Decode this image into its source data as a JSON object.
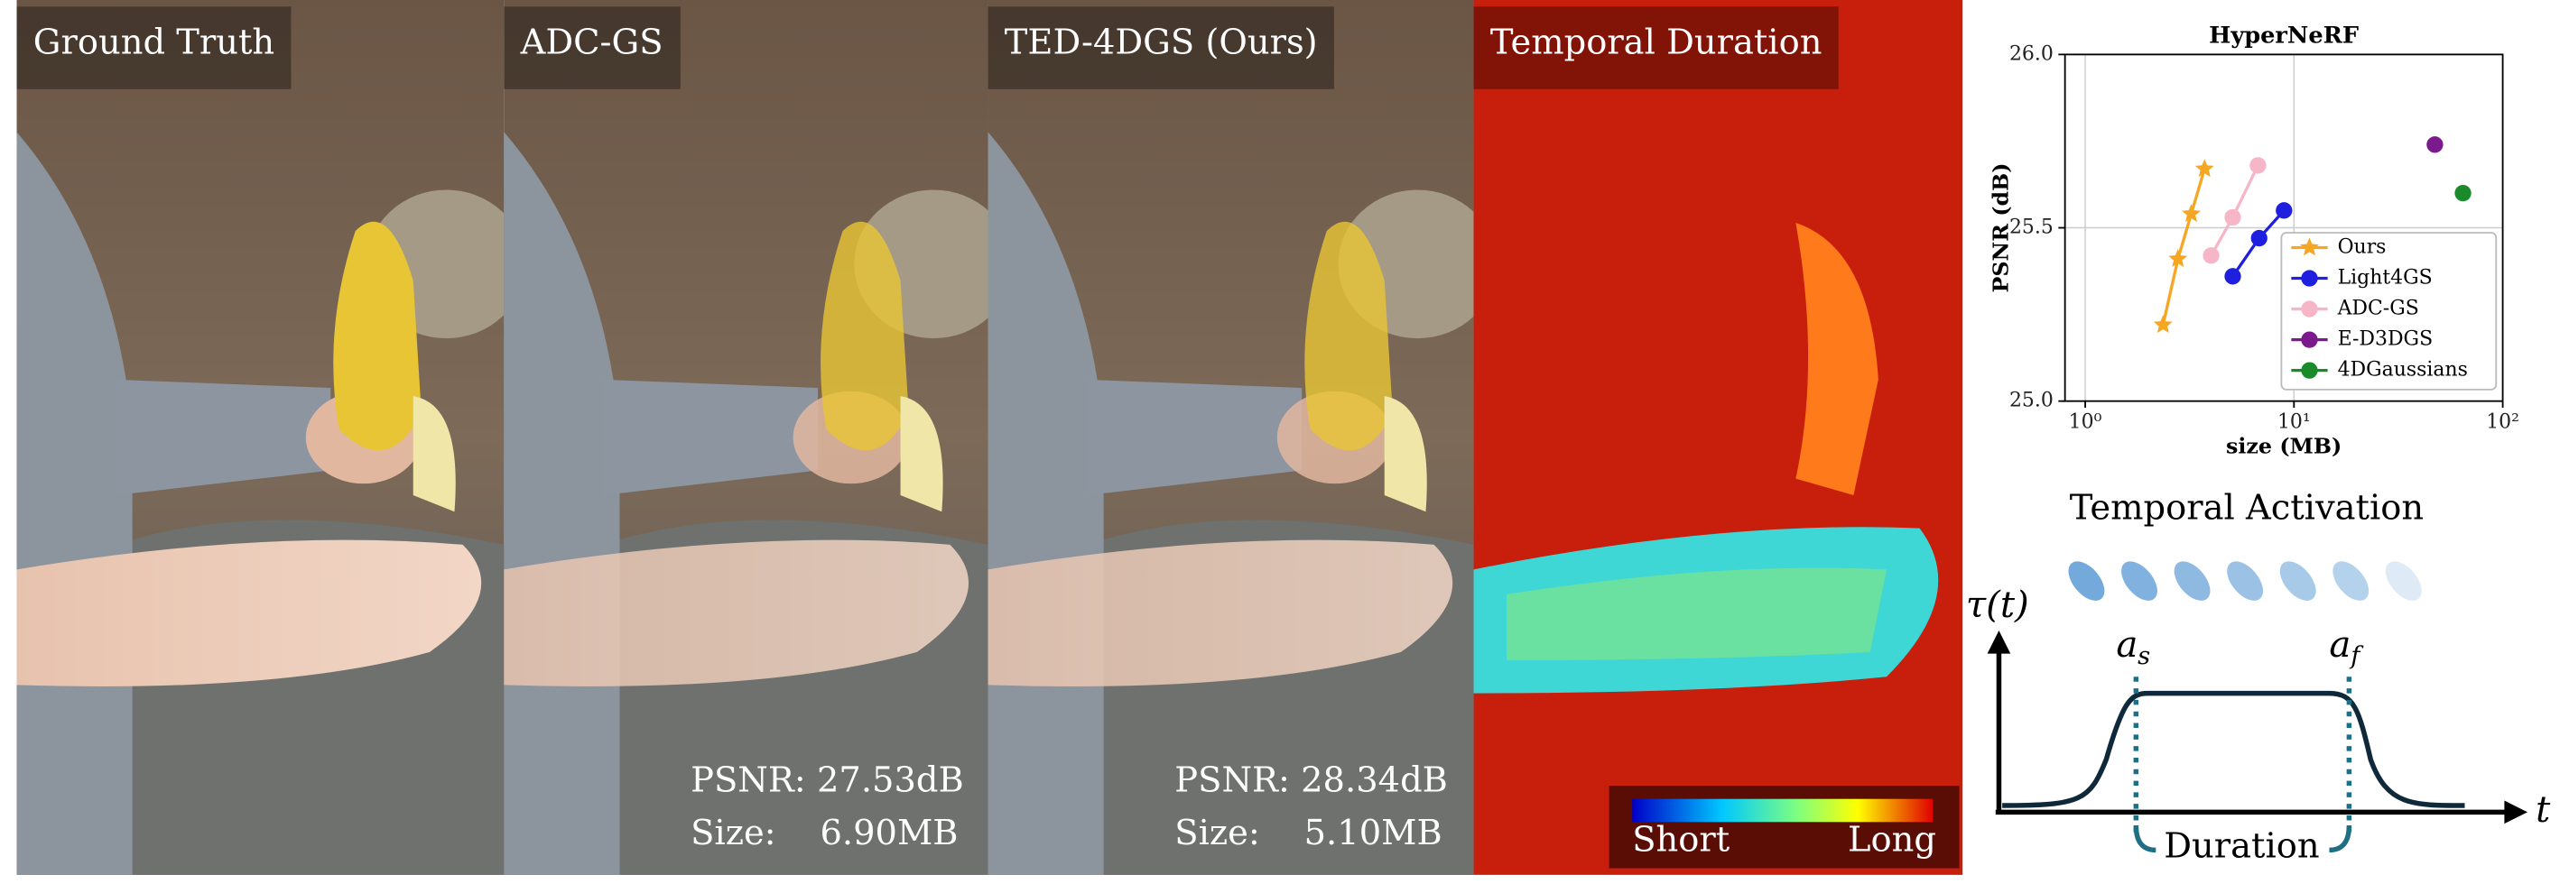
{
  "panels": [
    {
      "label": "Ground Truth"
    },
    {
      "label": "ADC-GS",
      "psnr": "PSNR: 27.53dB",
      "size": "Size:    6.90MB"
    },
    {
      "label": "TED-4DGS (Ours)",
      "psnr": "PSNR: 28.34dB",
      "size": "Size:    5.10MB"
    },
    {
      "label": "Temporal Duration",
      "colorbar_low": "Short",
      "colorbar_high": "Long"
    }
  ],
  "chart_data": {
    "type": "line",
    "title": "HyperNeRF",
    "x_label": "size (MB)",
    "y_label": "PSNR (dB)",
    "x_scale": "log",
    "grid": true,
    "legend": "lower right",
    "xlim": [
      0.8,
      100
    ],
    "xticks": [
      {
        "value": 1,
        "label": "10⁰"
      },
      {
        "value": 10,
        "label": "10¹"
      },
      {
        "value": 100,
        "label": "10²"
      }
    ],
    "ylim": [
      25.0,
      26.0
    ],
    "yticks": [
      {
        "value": 25.0,
        "label": "25.0"
      },
      {
        "value": 25.5,
        "label": "25.5"
      },
      {
        "value": 26.0,
        "label": "26.0"
      }
    ],
    "series": [
      {
        "name": "Ours",
        "color": "#f5a623",
        "marker": "star",
        "x": [
          2.36,
          2.78,
          3.22,
          3.73
        ],
        "values": [
          25.22,
          25.41,
          25.54,
          25.67
        ]
      },
      {
        "name": "Light4GS",
        "color": "#1f1fe0",
        "marker": "circle",
        "x": [
          5.09,
          6.81,
          8.96
        ],
        "values": [
          25.36,
          25.47,
          25.55
        ]
      },
      {
        "name": "ADC-GS",
        "color": "#f7b6c8",
        "marker": "circle",
        "x": [
          4.01,
          5.09,
          6.72
        ],
        "values": [
          25.42,
          25.53,
          25.68
        ]
      },
      {
        "name": "E-D3DGS",
        "color": "#7b1a8c",
        "marker": "circle",
        "x": [
          47.3
        ],
        "values": [
          25.74
        ]
      },
      {
        "name": "4DGaussians",
        "color": "#1a8a2a",
        "marker": "circle",
        "x": [
          64.5
        ],
        "values": [
          25.6
        ]
      }
    ]
  },
  "diagram": {
    "title": "Temporal Activation",
    "y_axis": "τ(t)",
    "x_axis": "t",
    "start": "a",
    "start_sub": "s",
    "end": "a",
    "end_sub": "f",
    "duration": "Duration"
  }
}
